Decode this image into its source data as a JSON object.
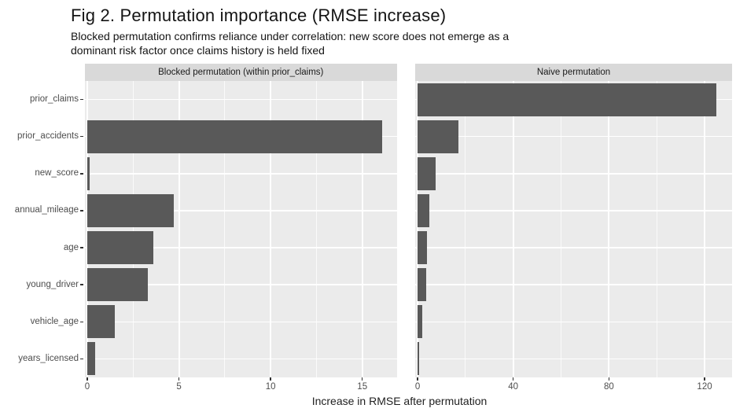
{
  "title": "Fig 2. Permutation importance (RMSE increase)",
  "subtitle": "Blocked permutation confirms reliance under correlation: new score does not emerge as a\ndominant risk factor once claims history is held fixed",
  "colors": {
    "bar": "#595959",
    "panel_background": "#EBEBEB",
    "strip_background": "#D9D9D9",
    "gridline": "#FFFFFF",
    "axis_text": "#4D4D4D",
    "tick_mark": "#333333",
    "title_text": "#141414"
  },
  "chart_data": {
    "type": "bar",
    "orientation": "horizontal",
    "faceted": true,
    "grid": true,
    "legend": false,
    "title": "Fig 2. Permutation importance (RMSE increase)",
    "subtitle": "Blocked permutation confirms reliance under correlation: new score does not emerge as a dominant risk factor once claims history is held fixed",
    "xlabel": "Increase in RMSE after permutation",
    "ylabel": "",
    "categories_top_to_bottom": [
      "prior_claims",
      "prior_accidents",
      "new_score",
      "annual_mileage",
      "age",
      "young_driver",
      "vehicle_age",
      "years_licensed"
    ],
    "panels": [
      {
        "strip_label": "Blocked permutation (within prior_claims)",
        "values": [
          0,
          16.1,
          0.12,
          4.7,
          3.6,
          3.3,
          1.5,
          0.45
        ],
        "xticks": [
          0,
          5,
          10,
          15
        ],
        "minor_ticks": [
          2.5,
          7.5,
          12.5
        ],
        "xlim": [
          -0.15,
          16.9
        ]
      },
      {
        "strip_label": "Naive permutation",
        "values": [
          125,
          17,
          7.5,
          4.9,
          3.9,
          3.6,
          1.8,
          0.7
        ],
        "xticks": [
          0,
          40,
          80,
          120
        ],
        "minor_ticks": [
          20,
          60,
          100
        ],
        "xlim": [
          -1.0,
          131.5
        ]
      }
    ]
  }
}
